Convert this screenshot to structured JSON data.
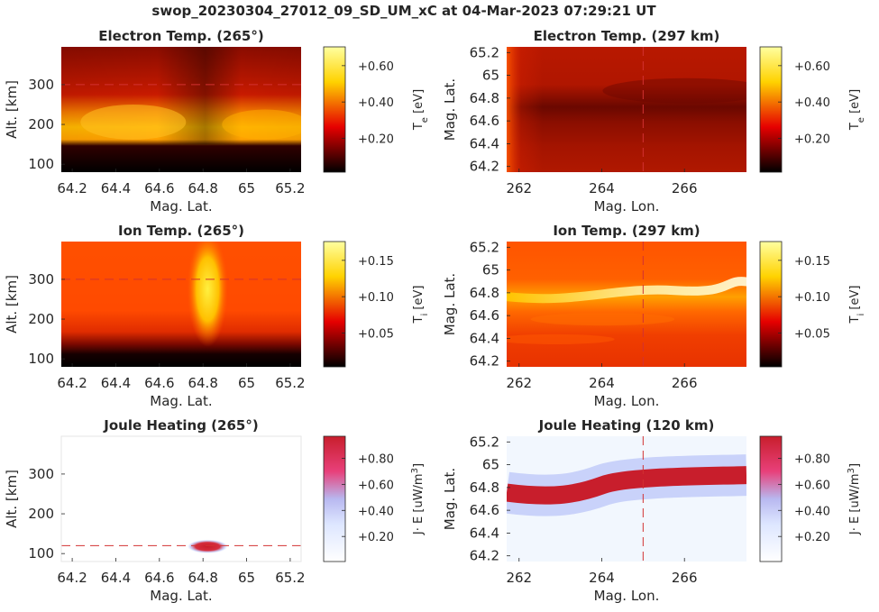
{
  "figure_title": "swop_20230304_27012_09_SD_UM_xC at 04-Mar-2023 07:29:21 UT",
  "colors": {
    "hot_colormap": [
      "#000000",
      "#ff0000",
      "#ffff00",
      "#ffffff"
    ],
    "joule_colormap": [
      "#ffffff",
      "#b8c8ff",
      "#e8305a",
      "#c81e2c"
    ],
    "reference_line": "#d23232",
    "axis_line": "#262626"
  },
  "chart_data": [
    {
      "type": "heatmap",
      "title": "Electron Temp. (265°)",
      "xlabel": "Mag. Lat.",
      "ylabel": "Alt. [km]",
      "xlim": [
        64.15,
        65.25
      ],
      "ylim": [
        80,
        395
      ],
      "xticks": [
        "64.2",
        "64.4",
        "64.6",
        "64.8",
        "65",
        "65.2"
      ],
      "yticks": [
        "100",
        "200",
        "300"
      ],
      "reference_line": {
        "orientation": "horizontal",
        "value": 300
      },
      "colorbar": {
        "label_main": "T",
        "label_sub": "e",
        "label_tail": " [eV]",
        "ticks": [
          "+0.20",
          "+0.40",
          "+0.60"
        ],
        "cmap": "hot"
      }
    },
    {
      "type": "heatmap",
      "title": "Electron Temp. (297 km)",
      "xlabel": "Mag. Lon.",
      "ylabel": "Mag. Lat.",
      "xlim": [
        261.7,
        267.5
      ],
      "ylim": [
        64.15,
        65.25
      ],
      "xticks": [
        "262",
        "264",
        "266"
      ],
      "yticks": [
        "64.2",
        "64.4",
        "64.6",
        "64.8",
        "65",
        "65.2"
      ],
      "reference_line": {
        "orientation": "vertical",
        "value": 265
      },
      "colorbar": {
        "label_main": "T",
        "label_sub": "e",
        "label_tail": " [eV]",
        "ticks": [
          "+0.20",
          "+0.40",
          "+0.60"
        ],
        "cmap": "hot"
      }
    },
    {
      "type": "heatmap",
      "title": "Ion Temp. (265°)",
      "xlabel": "Mag. Lat.",
      "ylabel": "Alt. [km]",
      "xlim": [
        64.15,
        65.25
      ],
      "ylim": [
        80,
        395
      ],
      "xticks": [
        "64.2",
        "64.4",
        "64.6",
        "64.8",
        "65",
        "65.2"
      ],
      "yticks": [
        "100",
        "200",
        "300"
      ],
      "reference_line": {
        "orientation": "horizontal",
        "value": 300
      },
      "colorbar": {
        "label_main": "T",
        "label_sub": "i",
        "label_tail": " [eV]",
        "ticks": [
          "+0.05",
          "+0.10",
          "+0.15"
        ],
        "cmap": "hot"
      }
    },
    {
      "type": "heatmap",
      "title": "Ion Temp. (297 km)",
      "xlabel": "Mag. Lon.",
      "ylabel": "Mag. Lat.",
      "xlim": [
        261.7,
        267.5
      ],
      "ylim": [
        64.15,
        65.25
      ],
      "xticks": [
        "262",
        "264",
        "266"
      ],
      "yticks": [
        "64.2",
        "64.4",
        "64.6",
        "64.8",
        "65",
        "65.2"
      ],
      "reference_line": {
        "orientation": "vertical",
        "value": 265
      },
      "colorbar": {
        "label_main": "T",
        "label_sub": "i",
        "label_tail": " [eV]",
        "ticks": [
          "+0.05",
          "+0.10",
          "+0.15"
        ],
        "cmap": "hot"
      }
    },
    {
      "type": "heatmap",
      "title": "Joule Heating (265°)",
      "xlabel": "Mag. Lat.",
      "ylabel": "Alt. [km]",
      "xlim": [
        64.15,
        65.25
      ],
      "ylim": [
        80,
        395
      ],
      "xticks": [
        "64.2",
        "64.4",
        "64.6",
        "64.8",
        "65",
        "65.2"
      ],
      "yticks": [
        "100",
        "200",
        "300"
      ],
      "reference_line": {
        "orientation": "horizontal",
        "value": 120
      },
      "colorbar": {
        "label_main": "J· E [uW/m",
        "label_sup": "3",
        "label_tail": "]",
        "ticks": [
          "+0.20",
          "+0.40",
          "+0.60",
          "+0.80"
        ],
        "cmap": "joule"
      }
    },
    {
      "type": "heatmap",
      "title": "Joule Heating (120 km)",
      "xlabel": "Mag. Lon.",
      "ylabel": "Mag. Lat.",
      "xlim": [
        261.7,
        267.5
      ],
      "ylim": [
        64.15,
        65.25
      ],
      "xticks": [
        "262",
        "264",
        "266"
      ],
      "yticks": [
        "64.2",
        "64.4",
        "64.6",
        "64.8",
        "65",
        "65.2"
      ],
      "reference_line": {
        "orientation": "vertical",
        "value": 265
      },
      "colorbar": {
        "label_main": "J· E [uW/m",
        "label_sup": "3",
        "label_tail": "]",
        "ticks": [
          "+0.20",
          "+0.40",
          "+0.60",
          "+0.80"
        ],
        "cmap": "joule"
      }
    }
  ]
}
